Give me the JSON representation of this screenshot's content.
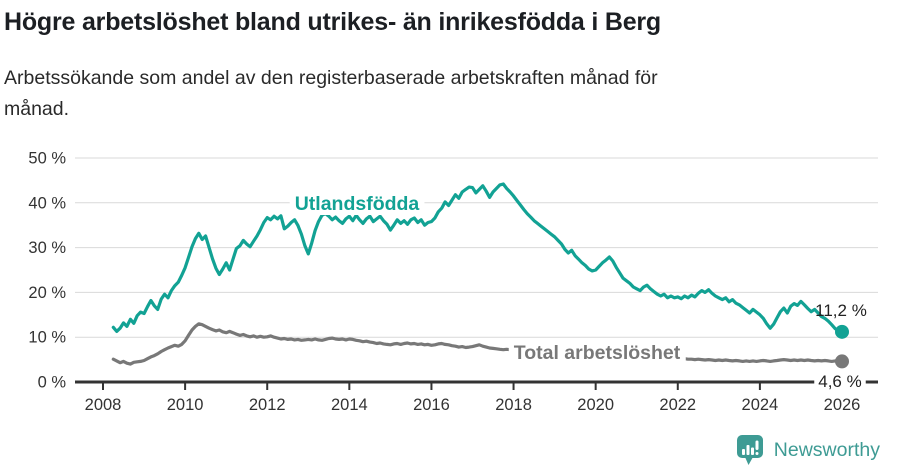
{
  "header": {
    "title": "Högre arbetslöshet bland utrikes- än inrikesfödda i Berg",
    "subtitle_lines": [
      "Arbetssökande som andel av den registerbaserade arbetskraften månad för",
      "månad."
    ]
  },
  "chart_data": {
    "type": "line",
    "title": "Högre arbetslöshet bland utrikes- än inrikesfödda i Berg",
    "subtitle": "Arbetssökande som andel av den registerbaserade arbetskraften månad för månad.",
    "grid": "horizontal",
    "ylim": [
      0,
      50
    ],
    "x_start_year": 2008,
    "x_start_month": 4,
    "x_end_year": 2026,
    "x_end_month": 1,
    "x_axis": {
      "ticks": [
        2008,
        2010,
        2012,
        2014,
        2016,
        2018,
        2020,
        2022,
        2024,
        2026
      ]
    },
    "y_axis": {
      "ticks": [
        {
          "value": 0,
          "label": "0 %"
        },
        {
          "value": 10,
          "label": "10 %"
        },
        {
          "value": 20,
          "label": "20 %"
        },
        {
          "value": 30,
          "label": "30 %"
        },
        {
          "value": 40,
          "label": "40 %"
        },
        {
          "value": 50,
          "label": "50 %"
        }
      ]
    },
    "series": [
      {
        "id": "utlandsfodda",
        "name": "Utlandsfödda",
        "color": "#12A294",
        "end_label": "11,2 %",
        "end_value": 11.2,
        "values": [
          12.2,
          11.3,
          12.0,
          13.2,
          12.4,
          14.0,
          13.1,
          14.8,
          15.6,
          15.3,
          16.8,
          18.2,
          17.0,
          16.2,
          18.5,
          19.6,
          18.8,
          20.4,
          21.5,
          22.3,
          23.8,
          25.5,
          27.8,
          30.2,
          32.0,
          33.2,
          31.8,
          32.6,
          30.0,
          27.5,
          25.4,
          24.0,
          25.2,
          26.6,
          25.0,
          27.4,
          29.8,
          30.4,
          31.6,
          30.8,
          30.2,
          31.4,
          32.6,
          34.0,
          35.6,
          36.7,
          36.2,
          37.0,
          36.4,
          37.1,
          34.2,
          34.8,
          35.6,
          36.2,
          34.9,
          33.0,
          30.4,
          28.6,
          31.0,
          33.8,
          35.8,
          37.2,
          37.6,
          37.0,
          36.2,
          36.8,
          36.0,
          35.4,
          36.4,
          37.0,
          36.0,
          37.2,
          36.2,
          35.4,
          36.4,
          37.0,
          35.8,
          36.4,
          37.0,
          36.0,
          35.2,
          33.9,
          35.0,
          36.2,
          35.4,
          36.0,
          35.2,
          36.2,
          36.6,
          35.6,
          36.2,
          35.0,
          35.6,
          35.8,
          36.6,
          38.0,
          38.8,
          40.2,
          39.4,
          40.6,
          41.8,
          41.0,
          42.4,
          43.0,
          43.5,
          43.4,
          42.2,
          43.0,
          43.8,
          42.6,
          41.2,
          42.4,
          43.2,
          44.0,
          44.2,
          43.2,
          42.4,
          41.5,
          40.5,
          39.5,
          38.5,
          37.6,
          36.8,
          36.0,
          35.4,
          34.8,
          34.2,
          33.6,
          33.0,
          32.4,
          31.6,
          30.8,
          29.6,
          28.8,
          29.4,
          28.2,
          27.4,
          26.6,
          26.0,
          25.2,
          24.8,
          25.0,
          25.8,
          26.6,
          27.2,
          27.9,
          27.0,
          25.6,
          24.4,
          23.2,
          22.6,
          22.0,
          21.2,
          20.8,
          20.4,
          21.2,
          21.6,
          20.8,
          20.2,
          19.6,
          19.2,
          19.6,
          18.8,
          19.2,
          18.8,
          19.0,
          18.6,
          19.2,
          18.8,
          19.4,
          19.0,
          19.8,
          20.4,
          20.0,
          20.6,
          19.8,
          19.2,
          18.8,
          18.4,
          18.8,
          17.9,
          18.4,
          17.6,
          17.2,
          16.6,
          16.0,
          15.4,
          16.2,
          15.6,
          15.0,
          14.2,
          13.0,
          12.0,
          12.9,
          14.3,
          15.7,
          16.5,
          15.4,
          16.9,
          17.5,
          17.1,
          18.0,
          17.2,
          16.4,
          15.7,
          16.2,
          15.4,
          14.6,
          14.2,
          13.6,
          12.8,
          11.9,
          11.4,
          11.2
        ]
      },
      {
        "id": "total",
        "name": "Total arbetslöshet",
        "color": "#787878",
        "end_label": "4,6 %",
        "end_value": 4.6,
        "values": [
          5.1,
          4.7,
          4.3,
          4.6,
          4.2,
          4.0,
          4.4,
          4.5,
          4.6,
          4.8,
          5.2,
          5.6,
          5.9,
          6.3,
          6.8,
          7.2,
          7.6,
          7.9,
          8.2,
          8.0,
          8.4,
          9.2,
          10.4,
          11.6,
          12.4,
          13.0,
          12.8,
          12.4,
          12.0,
          11.7,
          11.4,
          11.6,
          11.2,
          11.0,
          11.3,
          11.0,
          10.7,
          10.4,
          10.6,
          10.3,
          10.1,
          10.3,
          10.0,
          10.2,
          10.0,
          10.1,
          10.3,
          10.0,
          9.8,
          9.6,
          9.7,
          9.5,
          9.6,
          9.4,
          9.5,
          9.3,
          9.4,
          9.5,
          9.4,
          9.6,
          9.4,
          9.3,
          9.5,
          9.7,
          9.8,
          9.6,
          9.5,
          9.6,
          9.4,
          9.6,
          9.5,
          9.3,
          9.2,
          9.0,
          9.1,
          8.9,
          8.8,
          8.6,
          8.7,
          8.5,
          8.4,
          8.3,
          8.5,
          8.6,
          8.4,
          8.6,
          8.7,
          8.5,
          8.6,
          8.4,
          8.5,
          8.3,
          8.4,
          8.2,
          8.3,
          8.5,
          8.6,
          8.4,
          8.3,
          8.1,
          8.0,
          7.8,
          7.9,
          7.7,
          7.8,
          7.9,
          8.1,
          8.3,
          8.0,
          7.8,
          7.6,
          7.5,
          7.4,
          7.3,
          7.2,
          7.3,
          7.2,
          7.1,
          7.0,
          6.9,
          6.8,
          6.7,
          6.8,
          6.6,
          6.5,
          6.4,
          6.5,
          6.4,
          6.3,
          6.4,
          6.3,
          6.2,
          6.1,
          6.2,
          6.1,
          6.0,
          6.1,
          6.0,
          5.9,
          6.0,
          6.1,
          6.2,
          6.3,
          6.6,
          6.9,
          7.1,
          7.0,
          6.9,
          6.8,
          6.7,
          6.5,
          6.4,
          6.3,
          6.3,
          6.2,
          6.1,
          6.0,
          5.9,
          5.8,
          5.7,
          5.6,
          5.6,
          5.5,
          5.4,
          5.4,
          5.3,
          5.2,
          5.2,
          5.1,
          5.1,
          5.0,
          5.1,
          5.0,
          4.9,
          5.0,
          4.9,
          4.8,
          4.9,
          4.8,
          4.9,
          4.8,
          4.7,
          4.8,
          4.7,
          4.6,
          4.7,
          4.6,
          4.7,
          4.6,
          4.7,
          4.8,
          4.7,
          4.6,
          4.7,
          4.8,
          4.9,
          5.0,
          4.9,
          4.8,
          4.9,
          4.8,
          4.9,
          4.8,
          4.9,
          4.8,
          4.7,
          4.8,
          4.7,
          4.8,
          4.7,
          4.6,
          4.7,
          4.6,
          4.6
        ]
      }
    ]
  },
  "footer": {
    "brand": "Newsworthy",
    "brand_color": "#3E9B94"
  }
}
